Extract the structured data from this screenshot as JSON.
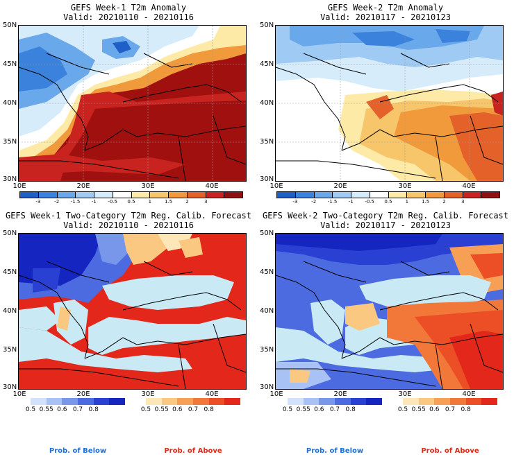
{
  "panels": [
    {
      "title1": "GEFS Week-1 T2m Anomaly",
      "title2": "Valid: 20210110 - 20210116",
      "kind": "anomaly",
      "week": 1
    },
    {
      "title1": "GEFS Week-2 T2m Anomaly",
      "title2": "Valid: 20210117 - 20210123",
      "kind": "anomaly",
      "week": 2
    },
    {
      "title1": "GEFS Week-1 Two-Category T2m Reg. Calib. Forecast",
      "title2": "Valid: 20210110 - 20210116",
      "kind": "prob",
      "week": 1
    },
    {
      "title1": "GEFS Week-2 Two-Category T2m Reg. Calib. Forecast",
      "title2": "Valid: 20210117 - 20210123",
      "kind": "prob",
      "week": 2
    }
  ],
  "lat_labels": [
    "50N",
    "45N",
    "40N",
    "35N",
    "30N"
  ],
  "lon_labels": [
    "10E",
    "20E",
    "30E",
    "40E"
  ],
  "anomaly_colorbar": {
    "labels": [
      "-3",
      "-2",
      "-1.5",
      "-1",
      "-0.5",
      "0.5",
      "1",
      "1.5",
      "2",
      "3"
    ],
    "colors": [
      "#1f5fc8",
      "#3a82dc",
      "#6aa8ec",
      "#9fcaf4",
      "#d6ecfb",
      "#ffffff",
      "#fdeaa6",
      "#f7c56a",
      "#f09a3c",
      "#e4612a",
      "#c8231e",
      "#8e1010"
    ]
  },
  "prob_below_bar": {
    "labels": [
      "0.5",
      "0.55",
      "0.6",
      "0.7",
      "0.8"
    ],
    "colors": [
      "#d2e2fb",
      "#a8c2f5",
      "#7896ea",
      "#4d6be0",
      "#2a40d2",
      "#1425c0"
    ]
  },
  "prob_above_bar": {
    "labels": [
      "0.5",
      "0.55",
      "0.6",
      "0.7",
      "0.8"
    ],
    "colors": [
      "#fde7b8",
      "#fbc882",
      "#f7a055",
      "#f2783a",
      "#ec4e26",
      "#e3271b"
    ]
  },
  "legend": {
    "below": "Prob. of Below",
    "above": "Prob. of Above",
    "below_color": "#1f6fd8",
    "above_color": "#e02a1a"
  }
}
